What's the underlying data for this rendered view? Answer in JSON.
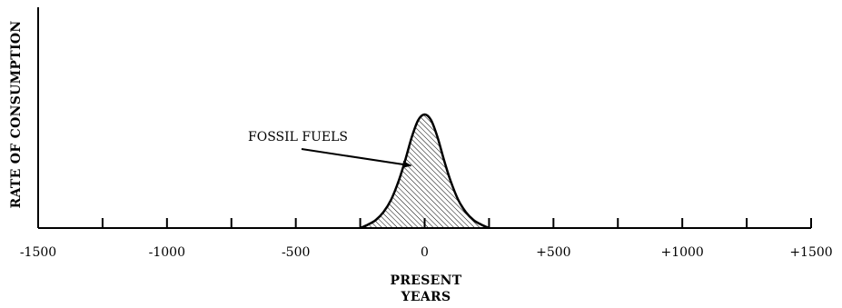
{
  "chart_data": {
    "type": "area",
    "title": "",
    "xlabel_lines": [
      "PRESENT",
      "YEARS"
    ],
    "ylabel": "RATE OF CONSUMPTION",
    "xlim": [
      -1500,
      1500
    ],
    "ylim": [
      0,
      1
    ],
    "x_ticks": [
      -1500,
      -1250,
      -1000,
      -750,
      -500,
      -250,
      0,
      250,
      500,
      750,
      1000,
      1250,
      1500
    ],
    "x_tick_labels": [
      {
        "value": -1500,
        "label": "-1500"
      },
      {
        "value": -1000,
        "label": "-1000"
      },
      {
        "value": -500,
        "label": "-500"
      },
      {
        "value": 0,
        "label": "0"
      },
      {
        "value": 500,
        "label": "+500"
      },
      {
        "value": 1000,
        "label": "+1000"
      },
      {
        "value": 1500,
        "label": "+1500"
      }
    ],
    "series": [
      {
        "fill": "hatched",
        "x": [
          -250,
          -220,
          -190,
          -160,
          -130,
          -100,
          -75,
          -50,
          -25,
          0,
          25,
          50,
          75,
          100,
          130,
          160,
          190,
          220,
          250
        ],
        "y": [
          0,
          0.03,
          0.07,
          0.14,
          0.25,
          0.42,
          0.6,
          0.8,
          0.95,
          1.0,
          0.95,
          0.8,
          0.6,
          0.42,
          0.25,
          0.14,
          0.07,
          0.03,
          0
        ]
      }
    ],
    "annotation": {
      "text": "FOSSIL FUELS",
      "x": -50,
      "y": 0.55
    },
    "grid": false
  },
  "colors": {
    "ink": "#000000",
    "background": "#ffffff"
  }
}
